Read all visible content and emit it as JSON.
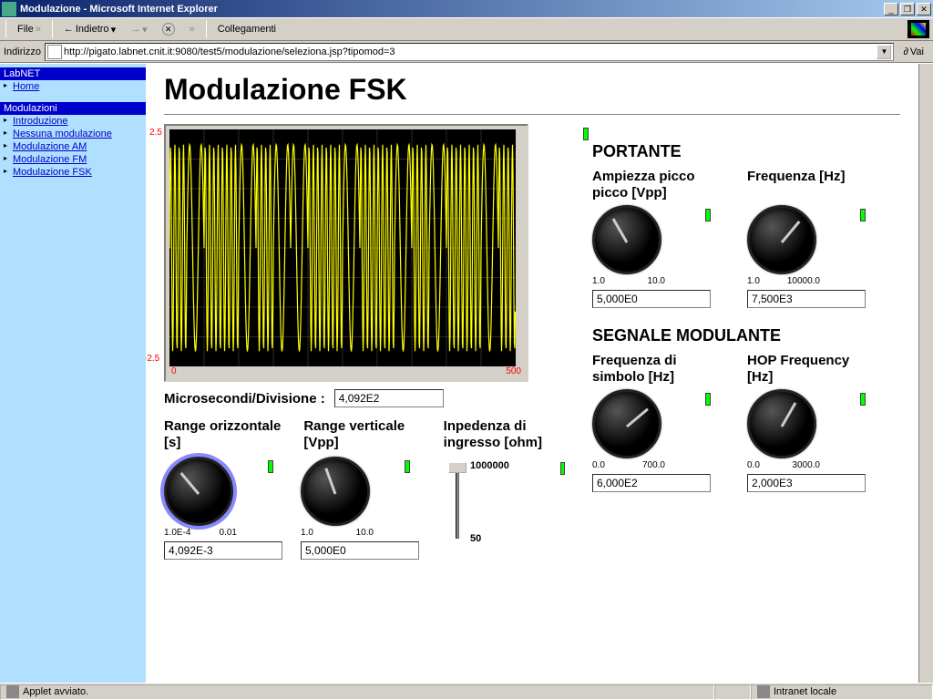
{
  "window": {
    "title": "Modulazione - Microsoft Internet Explorer"
  },
  "toolbar": {
    "file": "File",
    "back": "Indietro",
    "links": "Collegamenti"
  },
  "address": {
    "label": "Indirizzo",
    "url": "http://pigato.labnet.cnit.it:9080/test5/modulazione/seleziona.jsp?tipomod=3",
    "go": "Vai"
  },
  "sidebar": {
    "section1": "LabNET",
    "home": "Home",
    "section2": "Modulazioni",
    "items": [
      "Introduzione",
      "Nessuna modulazione",
      "Modulazione AM",
      "Modulazione FM",
      "Modulazione FSK"
    ]
  },
  "page": {
    "title": "Modulazione FSK"
  },
  "scope": {
    "y_max": "2.5",
    "y_min": "-2.5",
    "x_min": "0",
    "x_max": "500",
    "bg": "#000000",
    "wave_color": "#ffff00",
    "grid_color": "#555555",
    "label_color": "#ff0000",
    "amplitude": 2.3,
    "x_range": 500,
    "grid_divs_x": 10,
    "grid_divs_y": 8
  },
  "microsec": {
    "label": "Microsecondi/Divisione :",
    "value": "4,092E2"
  },
  "left_controls": {
    "range_h": {
      "label": "Range orizzontale [s]",
      "min": "1.0E-4",
      "max": "0.01",
      "value": "4,092E-3",
      "angle": -40
    },
    "range_v": {
      "label": "Range verticale [Vpp]",
      "min": "1.0",
      "max": "10.0",
      "value": "5,000E0",
      "angle": -20
    },
    "imped": {
      "label": "Inpedenza di ingresso [ohm]",
      "slider_top": "1000000",
      "slider_bot": "50"
    }
  },
  "portante": {
    "title": "PORTANTE",
    "amp": {
      "label": "Ampiezza picco picco [Vpp]",
      "min": "1.0",
      "max": "10.0",
      "value": "5,000E0",
      "angle": -30
    },
    "freq": {
      "label": "Frequenza [Hz]",
      "min": "1.0",
      "max": "10000.0",
      "value": "7,500E3",
      "angle": 40
    }
  },
  "modulante": {
    "title": "SEGNALE MODULANTE",
    "fsym": {
      "label": "Frequenza di simbolo [Hz]",
      "min": "0.0",
      "max": "700.0",
      "value": "6,000E2",
      "angle": 50
    },
    "hop": {
      "label": "HOP Frequency [Hz]",
      "min": "0.0",
      "max": "3000.0",
      "value": "2,000E3",
      "angle": 30
    }
  },
  "status": {
    "left": "Applet avviato.",
    "right": "Intranet locale"
  },
  "led_color": "#00ff00"
}
